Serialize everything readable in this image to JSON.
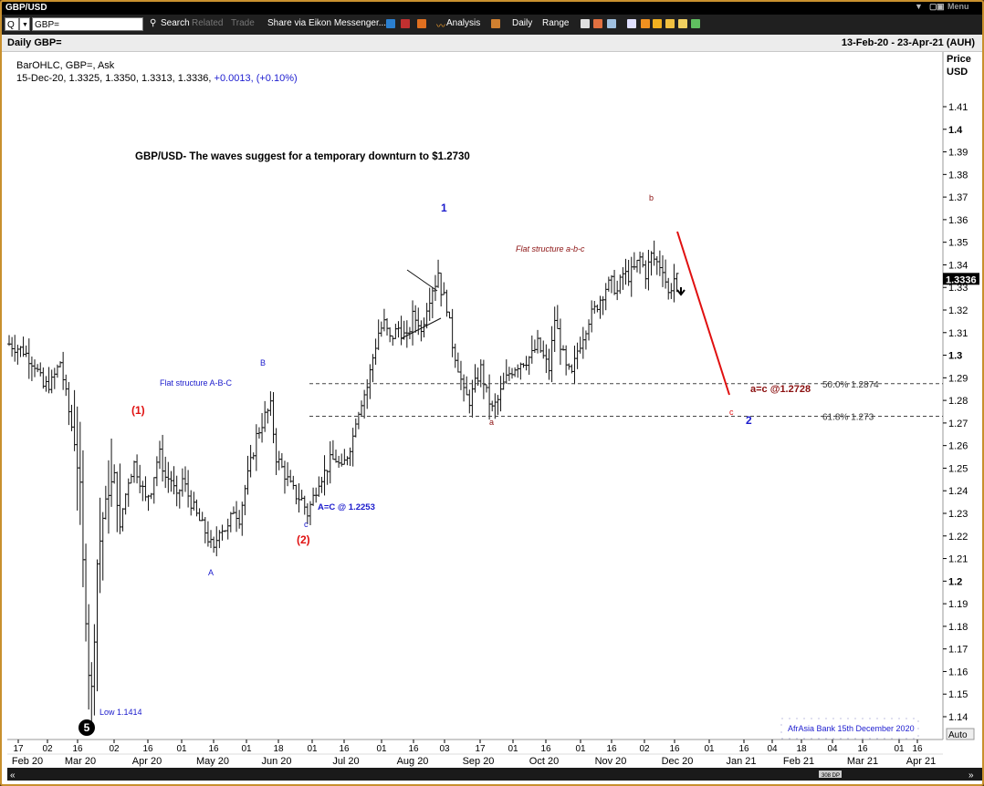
{
  "window": {
    "title": "GBP/USD",
    "menu_label": "Menu"
  },
  "toolbar": {
    "code_prefix": "Q",
    "ric_value": "GBP=",
    "search_label": "Search",
    "related_label": "Related",
    "trade_label": "Trade",
    "share_label": "Share via Eikon Messenger...",
    "analysis_label": "Analysis",
    "daily_label": "Daily",
    "range_label": "Range"
  },
  "header": {
    "left": "Daily GBP=",
    "right": "13-Feb-20 - 23-Apr-21 (AUH)"
  },
  "legend": {
    "line1": "BarOHLC, GBP=, Ask",
    "line2_values": "15-Dec-20, 1.3325, 1.3350, 1.3313, 1.3336,",
    "line2_change": "+0.0013, (+0.10%)"
  },
  "yaxis": {
    "title1": "Price",
    "title2": "USD",
    "ticks": [
      "1.41",
      "1.4",
      "1.39",
      "1.38",
      "1.37",
      "1.36",
      "1.35",
      "1.34",
      "1.33",
      "1.32",
      "1.31",
      "1.3",
      "1.29",
      "1.28",
      "1.27",
      "1.26",
      "1.25",
      "1.24",
      "1.23",
      "1.22",
      "1.21",
      "1.2",
      "1.19",
      "1.18",
      "1.17",
      "1.16",
      "1.15",
      "1.14"
    ],
    "bold_ticks": [
      "1.4",
      "1.3",
      "1.2"
    ],
    "last_price": "1.3336",
    "auto_label": "Auto"
  },
  "xaxis": {
    "days": [
      "17",
      "02",
      "16",
      "02",
      "16",
      "01",
      "16",
      "01",
      "18",
      "01",
      "16",
      "01",
      "16",
      "03",
      "17",
      "01",
      "16",
      "01",
      "16",
      "02",
      "16",
      "01",
      "16",
      "04",
      "18",
      "04",
      "16",
      "01",
      "16",
      "01",
      "16"
    ],
    "months": [
      "Feb 20",
      "Mar 20",
      "Apr 20",
      "May 20",
      "Jun 20",
      "Jul 20",
      "Aug 20",
      "Sep 20",
      "Oct 20",
      "Nov 20",
      "Dec 20",
      "Jan 21",
      "Feb 21",
      "Mar 21",
      "Apr 21"
    ]
  },
  "annotations": {
    "title": "GBP/USD- The waves suggest for a temporary downturn to $1.2730",
    "wave1": "1",
    "wave2": "2",
    "wave_i": "(1)",
    "wave_ii": "(2)",
    "flat_abc": "Flat structure A-B-C",
    "flat_abc_small": "Flat structure a-b-c",
    "label_A": "A",
    "label_B": "B",
    "label_c_lower": "c",
    "a_eq_c_upper": "A=C @ 1.2253",
    "label_a": "a",
    "label_b": "b",
    "label_C_red": "c",
    "a_eq_c_lower": "a=c @1.2728",
    "fib50": "50.0% 1.2874",
    "fib618": "61.8% 1.273",
    "low": "Low 1.1414",
    "wave5": "5",
    "watermark": "AfrAsia Bank 15th December 2020",
    "footer_tag": "308 DP"
  },
  "colors": {
    "blue": "#1a1acc",
    "red": "#e01010",
    "darkred": "#8b1010",
    "bars": "#111111"
  },
  "chart_data": {
    "type": "bar",
    "subtype": "ohlc",
    "instrument": "GBP=",
    "x_range": [
      "2020-02-13",
      "2021-04-23"
    ],
    "y_range": [
      1.135,
      1.415
    ],
    "last_bar": {
      "date": "2020-12-15",
      "open": 1.3325,
      "high": 1.335,
      "low": 1.3313,
      "close": 1.3336
    },
    "levels": [
      {
        "label": "50.0%",
        "price": 1.2874
      },
      {
        "label": "61.8%",
        "price": 1.273
      }
    ],
    "target": 1.2728,
    "low_point": 1.1414,
    "path": [
      [
        0,
        1.305
      ],
      [
        5,
        1.302
      ],
      [
        9,
        1.296
      ],
      [
        12,
        1.286
      ],
      [
        15,
        1.288
      ],
      [
        18,
        1.297
      ],
      [
        21,
        1.275
      ],
      [
        23,
        1.262
      ],
      [
        25,
        1.241
      ],
      [
        26,
        1.208
      ],
      [
        28,
        1.16
      ],
      [
        29,
        1.152
      ],
      [
        30,
        1.176
      ],
      [
        31,
        1.208
      ],
      [
        33,
        1.228
      ],
      [
        35,
        1.24
      ],
      [
        37,
        1.246
      ],
      [
        38,
        1.236
      ],
      [
        39,
        1.222
      ],
      [
        40,
        1.232
      ],
      [
        42,
        1.245
      ],
      [
        44,
        1.252
      ],
      [
        46,
        1.245
      ],
      [
        48,
        1.236
      ],
      [
        50,
        1.241
      ],
      [
        52,
        1.253
      ],
      [
        53,
        1.256
      ],
      [
        55,
        1.246
      ],
      [
        57,
        1.245
      ],
      [
        59,
        1.236
      ],
      [
        61,
        1.245
      ],
      [
        63,
        1.238
      ],
      [
        66,
        1.229
      ],
      [
        69,
        1.222
      ],
      [
        72,
        1.213
      ],
      [
        74,
        1.224
      ],
      [
        77,
        1.223
      ],
      [
        79,
        1.232
      ],
      [
        81,
        1.228
      ],
      [
        83,
        1.241
      ],
      [
        85,
        1.252
      ],
      [
        87,
        1.264
      ],
      [
        90,
        1.273
      ],
      [
        92,
        1.277
      ],
      [
        94,
        1.255
      ],
      [
        96,
        1.25
      ],
      [
        99,
        1.242
      ],
      [
        101,
        1.238
      ],
      [
        103,
        1.236
      ],
      [
        105,
        1.23
      ],
      [
        107,
        1.237
      ],
      [
        109,
        1.245
      ],
      [
        111,
        1.248
      ],
      [
        113,
        1.253
      ],
      [
        115,
        1.254
      ],
      [
        117,
        1.249
      ],
      [
        119,
        1.256
      ],
      [
        121,
        1.264
      ],
      [
        122,
        1.272
      ],
      [
        124,
        1.28
      ],
      [
        126,
        1.286
      ],
      [
        128,
        1.299
      ],
      [
        130,
        1.31
      ],
      [
        132,
        1.314
      ],
      [
        134,
        1.307
      ],
      [
        137,
        1.312
      ],
      [
        140,
        1.307
      ],
      [
        142,
        1.317
      ],
      [
        144,
        1.315
      ],
      [
        145,
        1.31
      ],
      [
        147,
        1.322
      ],
      [
        149,
        1.33
      ],
      [
        150,
        1.332
      ],
      [
        151,
        1.337
      ],
      [
        152,
        1.329
      ],
      [
        154,
        1.322
      ],
      [
        156,
        1.305
      ],
      [
        158,
        1.295
      ],
      [
        160,
        1.283
      ],
      [
        162,
        1.28
      ],
      [
        164,
        1.287
      ],
      [
        166,
        1.294
      ],
      [
        168,
        1.283
      ],
      [
        170,
        1.276
      ],
      [
        172,
        1.28
      ],
      [
        174,
        1.287
      ],
      [
        176,
        1.292
      ],
      [
        178,
        1.295
      ],
      [
        180,
        1.297
      ],
      [
        182,
        1.298
      ],
      [
        184,
        1.3
      ],
      [
        186,
        1.305
      ],
      [
        188,
        1.299
      ],
      [
        190,
        1.294
      ],
      [
        192,
        1.316
      ],
      [
        194,
        1.305
      ],
      [
        196,
        1.294
      ],
      [
        198,
        1.291
      ],
      [
        200,
        1.302
      ],
      [
        202,
        1.309
      ],
      [
        204,
        1.316
      ],
      [
        206,
        1.32
      ],
      [
        208,
        1.325
      ],
      [
        210,
        1.33
      ],
      [
        212,
        1.332
      ],
      [
        214,
        1.328
      ],
      [
        216,
        1.336
      ],
      [
        218,
        1.335
      ],
      [
        220,
        1.338
      ],
      [
        222,
        1.343
      ],
      [
        224,
        1.336
      ],
      [
        226,
        1.344
      ],
      [
        228,
        1.341
      ],
      [
        230,
        1.339
      ],
      [
        232,
        1.327
      ],
      [
        234,
        1.334
      ],
      [
        235,
        1.3336
      ]
    ]
  }
}
